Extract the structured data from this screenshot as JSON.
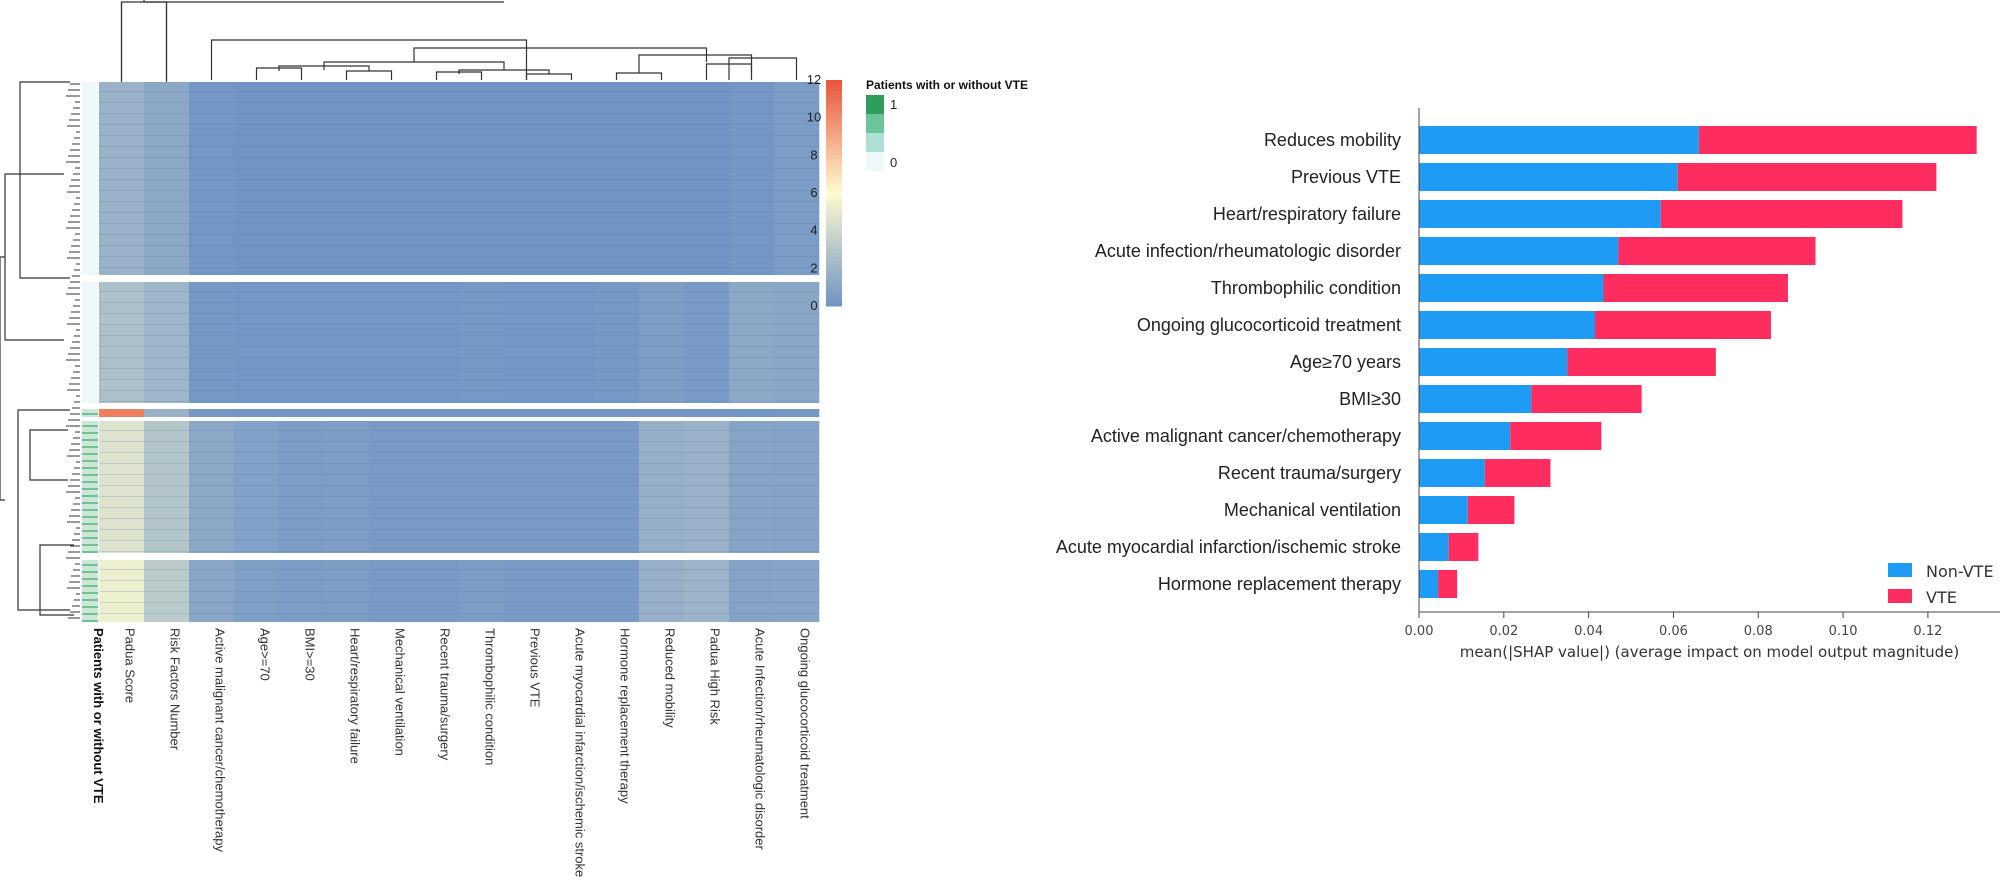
{
  "colors": {
    "heat_low": "#6e93c4",
    "heat_mid": "#fffbd0",
    "heat_high": "#e8543b",
    "annot_high": "#2e9e5e",
    "annot_low": "#eef8f8",
    "non_vte": "#1e9bf5",
    "vte": "#ff2c5f",
    "axis": "#444444",
    "dendro": "#333333"
  },
  "chart_data": [
    {
      "type": "heatmap",
      "title": "",
      "columns": [
        "Padua Score",
        "Risk Factors Number",
        "Active malignant cancer/chemotherapy",
        "Age>=70",
        "BMI>=30",
        "Heart/respiratory failure",
        "Mechanical ventilation",
        "Recent trauma/surgery",
        "Thrombophilic condition",
        "Previous VTE",
        "Acute myocardial infarction/ischemic stroke",
        "Hormone replacement therapy",
        "Reduced mobility",
        "Padua High Risk",
        "Acute Infection/rheumatologic disorder",
        "Ongoing glucocorticoid treatment"
      ],
      "annotation_label": "Patients with or without VTE",
      "colorbar": {
        "range": [
          0,
          12
        ],
        "ticks": [
          0,
          2,
          4,
          6,
          8,
          10,
          12
        ]
      },
      "legend": {
        "title": "Patients with or without VTE",
        "levels": [
          "1",
          "0"
        ]
      },
      "row_clusters": [
        {
          "vte": 0,
          "values": [
            1.8,
            1.2,
            0.2,
            0.1,
            0.1,
            0.1,
            0.1,
            0.1,
            0.1,
            0.1,
            0.1,
            0.1,
            0.1,
            0.1,
            0.2,
            0.5
          ]
        },
        {
          "vte": 0,
          "values": [
            2.6,
            2.0,
            0.3,
            0.2,
            0.2,
            0.2,
            0.2,
            0.2,
            0.3,
            0.2,
            0.2,
            0.3,
            0.6,
            0.4,
            1.2,
            1.1
          ]
        },
        {
          "vte": 1,
          "values": [
            10.5,
            1.8,
            0.3,
            0.2,
            0.2,
            0.2,
            0.2,
            0.2,
            0.2,
            0.2,
            0.2,
            0.2,
            0.2,
            0.2,
            0.2,
            0.3
          ]
        },
        {
          "vte": 1,
          "values": [
            4.6,
            2.9,
            1.2,
            0.8,
            0.5,
            0.6,
            0.4,
            0.4,
            0.4,
            0.4,
            0.4,
            0.4,
            1.6,
            1.8,
            1.0,
            0.9
          ]
        },
        {
          "vte": 1,
          "values": [
            5.3,
            3.2,
            1.1,
            0.7,
            0.5,
            0.6,
            0.4,
            0.4,
            0.5,
            0.4,
            0.4,
            0.4,
            1.7,
            1.9,
            0.9,
            1.0
          ]
        }
      ]
    },
    {
      "type": "bar",
      "orientation": "horizontal",
      "stacked": true,
      "categories": [
        "Reduces mobility",
        "Previous VTE",
        "Heart/respiratory failure",
        "Acute infection/rheumatologic disorder",
        "Thrombophilic condition",
        "Ongoing glucocorticoid treatment",
        "Age≥70 years",
        "BMI≥30",
        "Active malignant cancer/chemotherapy",
        "Recent trauma/surgery",
        "Mechanical ventilation",
        "Acute myocardial infarction/ischemic stroke",
        "Hormone replacement therapy"
      ],
      "series": [
        {
          "name": "Non-VTE",
          "values": [
            0.066,
            0.061,
            0.057,
            0.047,
            0.0435,
            0.0415,
            0.035,
            0.0265,
            0.0215,
            0.0155,
            0.0115,
            0.007,
            0.0045
          ]
        },
        {
          "name": "VTE",
          "values": [
            0.0655,
            0.061,
            0.057,
            0.0465,
            0.0435,
            0.0415,
            0.035,
            0.026,
            0.0215,
            0.0155,
            0.011,
            0.007,
            0.0045
          ]
        }
      ],
      "xlabel": "mean(|SHAP value|) (average impact on model output magnitude)",
      "ylabel": "",
      "xlim": [
        0,
        0.137
      ],
      "xticks": [
        "0.00",
        "0.02",
        "0.04",
        "0.06",
        "0.08",
        "0.10",
        "0.12"
      ],
      "legend_position": "lower-right"
    }
  ]
}
